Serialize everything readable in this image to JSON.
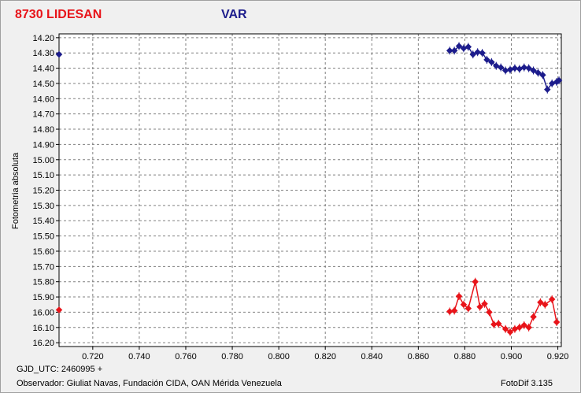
{
  "header": {
    "star_label": "8730 LIDESAN",
    "variable_label": "VAR"
  },
  "footer": {
    "gjd": "GJD_UTC: 2460995 +",
    "observer": "Observador: Giuliat Navas, Fundación CIDA, OAN Mérida Venezuela",
    "software": "FotoDif 3.135"
  },
  "colors": {
    "upper_series": "#1c1c8c",
    "lower_series": "#e8141a",
    "grid": "#808080"
  },
  "chart_data": {
    "type": "line",
    "ylabel": "Fotometria absoluta",
    "xlim": [
      0.7055,
      0.9215
    ],
    "ylim": [
      16.225,
      14.175
    ],
    "y_inverted": true,
    "grid": true,
    "x_ticks": [
      "0.720",
      "0.740",
      "0.760",
      "0.780",
      "0.800",
      "0.820",
      "0.840",
      "0.860",
      "0.880",
      "0.900",
      "0.920"
    ],
    "y_ticks": [
      "14.20",
      "14.30",
      "14.40",
      "14.50",
      "14.60",
      "14.70",
      "14.80",
      "14.90",
      "15.00",
      "15.10",
      "15.20",
      "15.30",
      "15.40",
      "15.50",
      "15.60",
      "15.70",
      "15.80",
      "15.90",
      "16.00",
      "16.10",
      "16.20"
    ],
    "series": [
      {
        "points": [
          [
            0.8735,
            14.285
          ],
          [
            0.8755,
            14.285
          ],
          [
            0.8775,
            14.255
          ],
          [
            0.8795,
            14.27
          ],
          [
            0.8815,
            14.26
          ],
          [
            0.8835,
            14.31
          ],
          [
            0.8855,
            14.295
          ],
          [
            0.8875,
            14.3
          ],
          [
            0.8895,
            14.345
          ],
          [
            0.8915,
            14.36
          ],
          [
            0.8935,
            14.385
          ],
          [
            0.8955,
            14.395
          ],
          [
            0.8975,
            14.415
          ],
          [
            0.8995,
            14.41
          ],
          [
            0.9015,
            14.4
          ],
          [
            0.9035,
            14.405
          ],
          [
            0.9055,
            14.395
          ],
          [
            0.9075,
            14.4
          ],
          [
            0.9095,
            14.415
          ],
          [
            0.9115,
            14.43
          ],
          [
            0.9135,
            14.445
          ],
          [
            0.9155,
            14.54
          ],
          [
            0.9175,
            14.5
          ],
          [
            0.9195,
            14.49
          ],
          [
            0.9205,
            14.48
          ]
        ],
        "outlier": [
          0.7055,
          14.31
        ]
      },
      {
        "points": [
          [
            0.8735,
            15.995
          ],
          [
            0.8755,
            15.99
          ],
          [
            0.8775,
            15.895
          ],
          [
            0.8795,
            15.95
          ],
          [
            0.8815,
            15.975
          ],
          [
            0.8845,
            15.8
          ],
          [
            0.8865,
            15.965
          ],
          [
            0.8885,
            15.945
          ],
          [
            0.8905,
            16.0
          ],
          [
            0.8925,
            16.08
          ],
          [
            0.8945,
            16.075
          ],
          [
            0.8975,
            16.11
          ],
          [
            0.8995,
            16.13
          ],
          [
            0.9015,
            16.11
          ],
          [
            0.9035,
            16.1
          ],
          [
            0.9055,
            16.085
          ],
          [
            0.9075,
            16.1
          ],
          [
            0.9095,
            16.03
          ],
          [
            0.9125,
            15.935
          ],
          [
            0.9145,
            15.95
          ],
          [
            0.9175,
            15.915
          ],
          [
            0.9195,
            16.065
          ]
        ],
        "outlier": [
          0.7055,
          15.985
        ]
      }
    ]
  }
}
